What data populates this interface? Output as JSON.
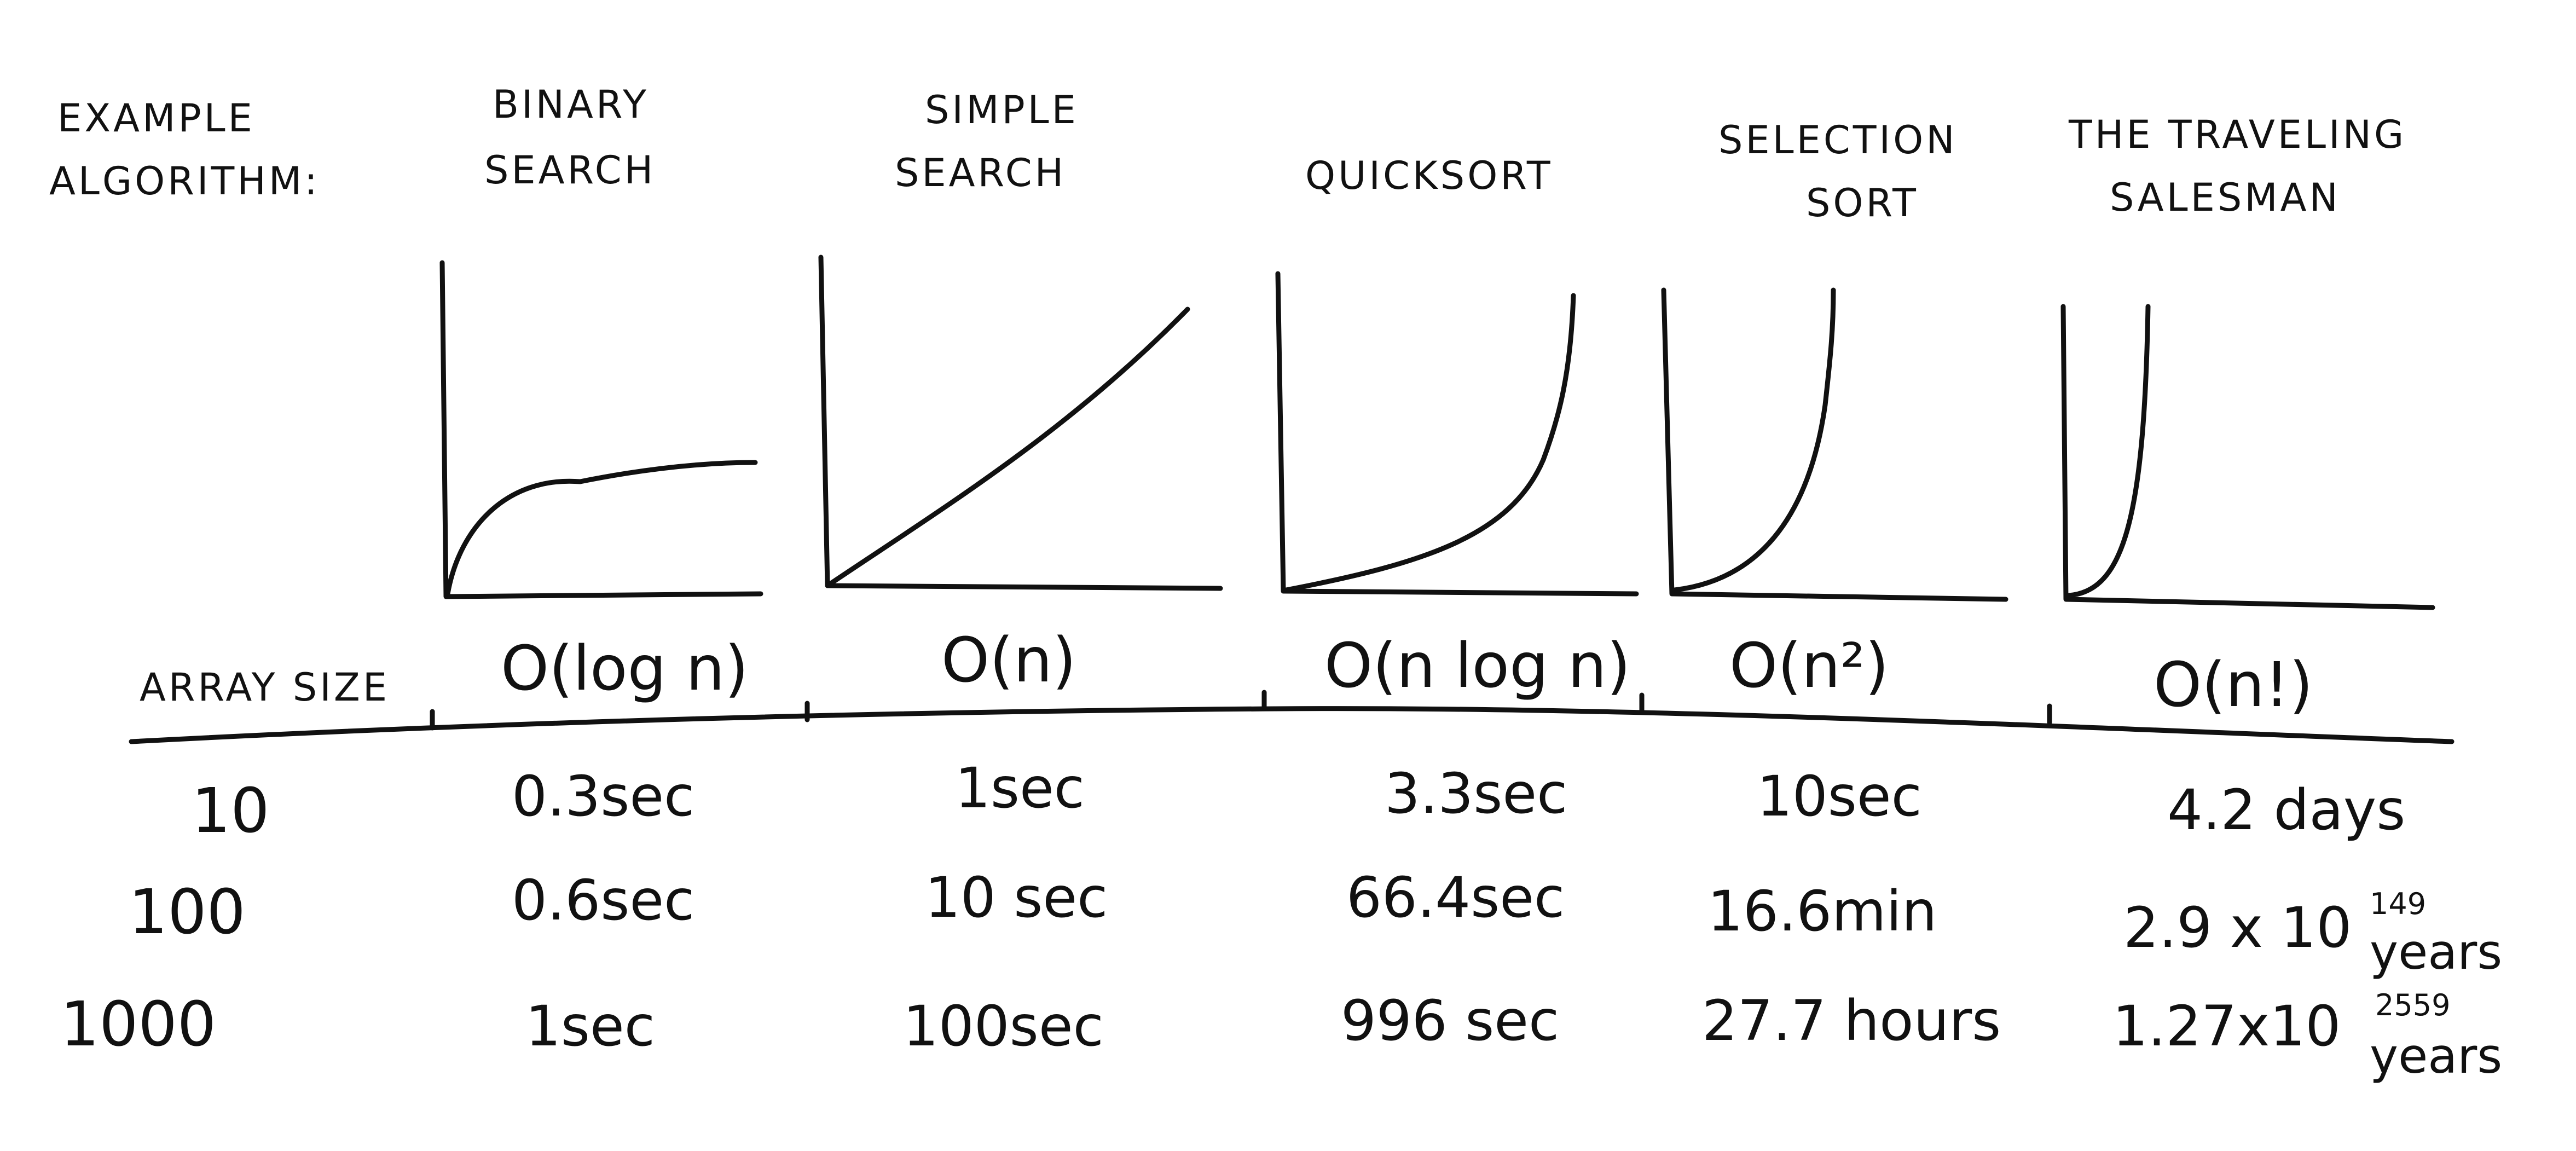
{
  "labels": {
    "example_algorithm_1": "EXAMPLE",
    "example_algorithm_2": "ALGORITHM:",
    "array_size": "ARRAY SIZE"
  },
  "algorithms": [
    {
      "name_1": "BINARY",
      "name_2": "SEARCH",
      "big_o": "O(log n)",
      "curve": "logarithmic"
    },
    {
      "name_1": "SIMPLE",
      "name_2": "SEARCH",
      "big_o": "O(n)",
      "curve": "linear"
    },
    {
      "name_1": "QUICKSORT",
      "name_2": "",
      "big_o": "O(n log n)",
      "curve": "linearithmic"
    },
    {
      "name_1": "SELECTION",
      "name_2": "SORT",
      "big_o": "O(n²)",
      "curve": "quadratic"
    },
    {
      "name_1": "THE TRAVELING",
      "name_2": "SALESMAN",
      "big_o": "O(n!)",
      "curve": "factorial"
    }
  ],
  "array_sizes": [
    "10",
    "100",
    "1000"
  ],
  "run_times": [
    [
      "0.3sec",
      "1sec",
      "3.3sec",
      "10sec",
      "4.2 days"
    ],
    [
      "0.6sec",
      "10 sec",
      "66.4sec",
      "16.6min",
      "2.9 x 10"
    ],
    [
      "1sec",
      "100sec",
      "996 sec",
      "27.7 hours",
      "1.27x10"
    ]
  ],
  "tsp_exponents": {
    "row_100": "149",
    "row_1000": "2559",
    "unit": "years"
  },
  "colors": {
    "ink": "#111111",
    "paper": "#ffffff"
  }
}
